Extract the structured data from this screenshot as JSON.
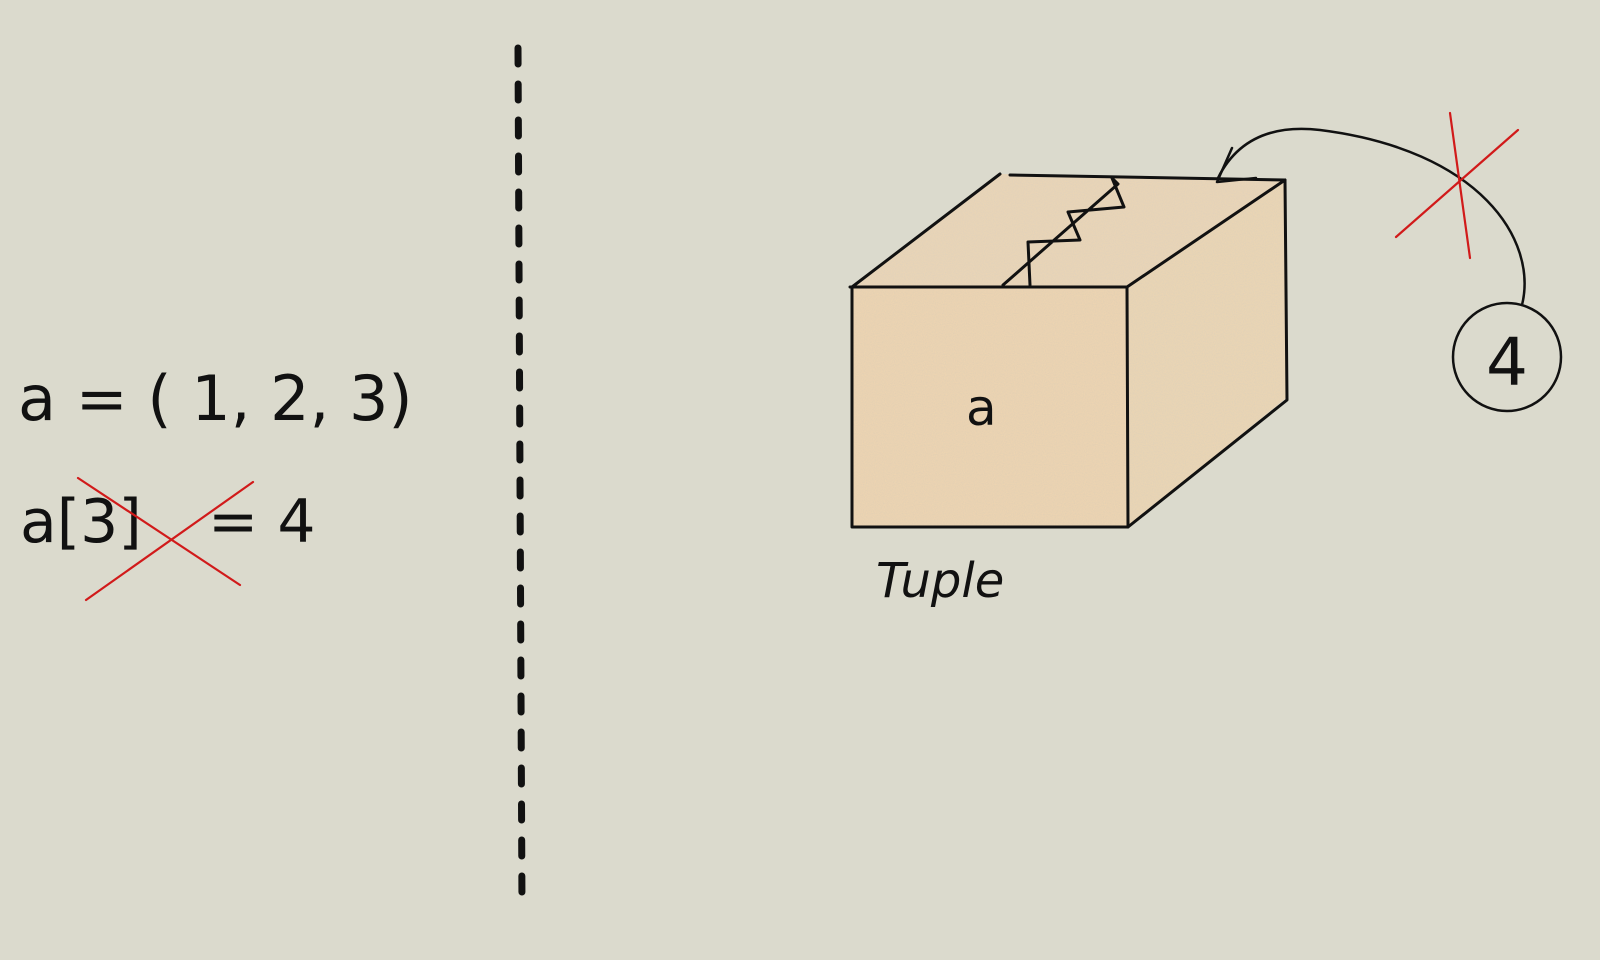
{
  "left_panel": {
    "assignment_line": "a = ( 1, 2, 3)",
    "mutation_lhs": "a[3]",
    "mutation_rhs": "= 4"
  },
  "diagram": {
    "box_label": "a",
    "caption": "Tuple",
    "incoming_value": "4"
  },
  "colors": {
    "background": "#dbdacd",
    "ink": "#111111",
    "cross": "#d11a1a",
    "box_fill": "#f3c08a"
  }
}
